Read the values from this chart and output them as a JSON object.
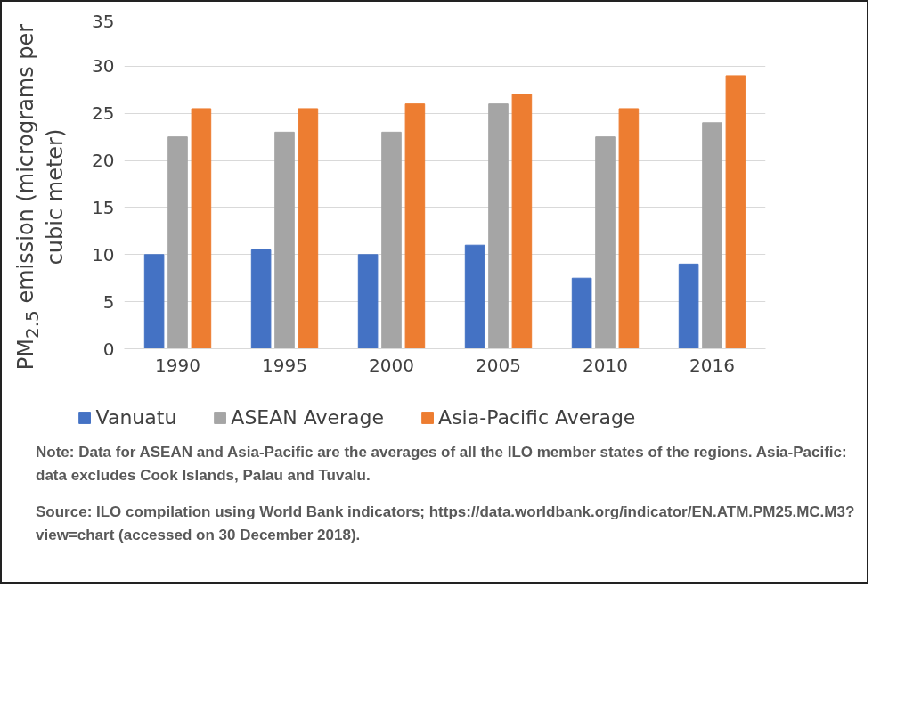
{
  "chart_data": {
    "type": "bar",
    "ylabel": "PM$_{2.5}$ emission (micrograms per cubic meter)",
    "categories": [
      "1990",
      "1995",
      "2000",
      "2005",
      "2010",
      "2016"
    ],
    "series": [
      {
        "name": "Vanuatu",
        "color": "#4472c4",
        "values": [
          10,
          10.5,
          10,
          11,
          7.5,
          9
        ]
      },
      {
        "name": "ASEAN Average",
        "color": "#a5a5a5",
        "values": [
          22.5,
          23,
          23,
          26,
          22.5,
          24
        ]
      },
      {
        "name": "Asia-Pacific Average",
        "color": "#ed7d31",
        "values": [
          25.5,
          25.5,
          26,
          27,
          25.5,
          29
        ]
      }
    ],
    "ylim": [
      0,
      35
    ],
    "yticks": [
      0,
      5,
      10,
      15,
      20,
      25,
      30,
      35
    ],
    "grid": "y",
    "legend": "bottom",
    "annotations": [
      "Note: Data for ASEAN and Asia-Pacific are the averages of all the ILO member states of the regions. Asia-Pacific: data excludes Cook Islands, Palau and Tuvalu.",
      "Source: ILO compilation using World Bank indicators; https://data.worldbank.org/indicator/EN.ATM.PM25.MC.M3?view=chart (accessed on 30 December 2018)."
    ]
  }
}
